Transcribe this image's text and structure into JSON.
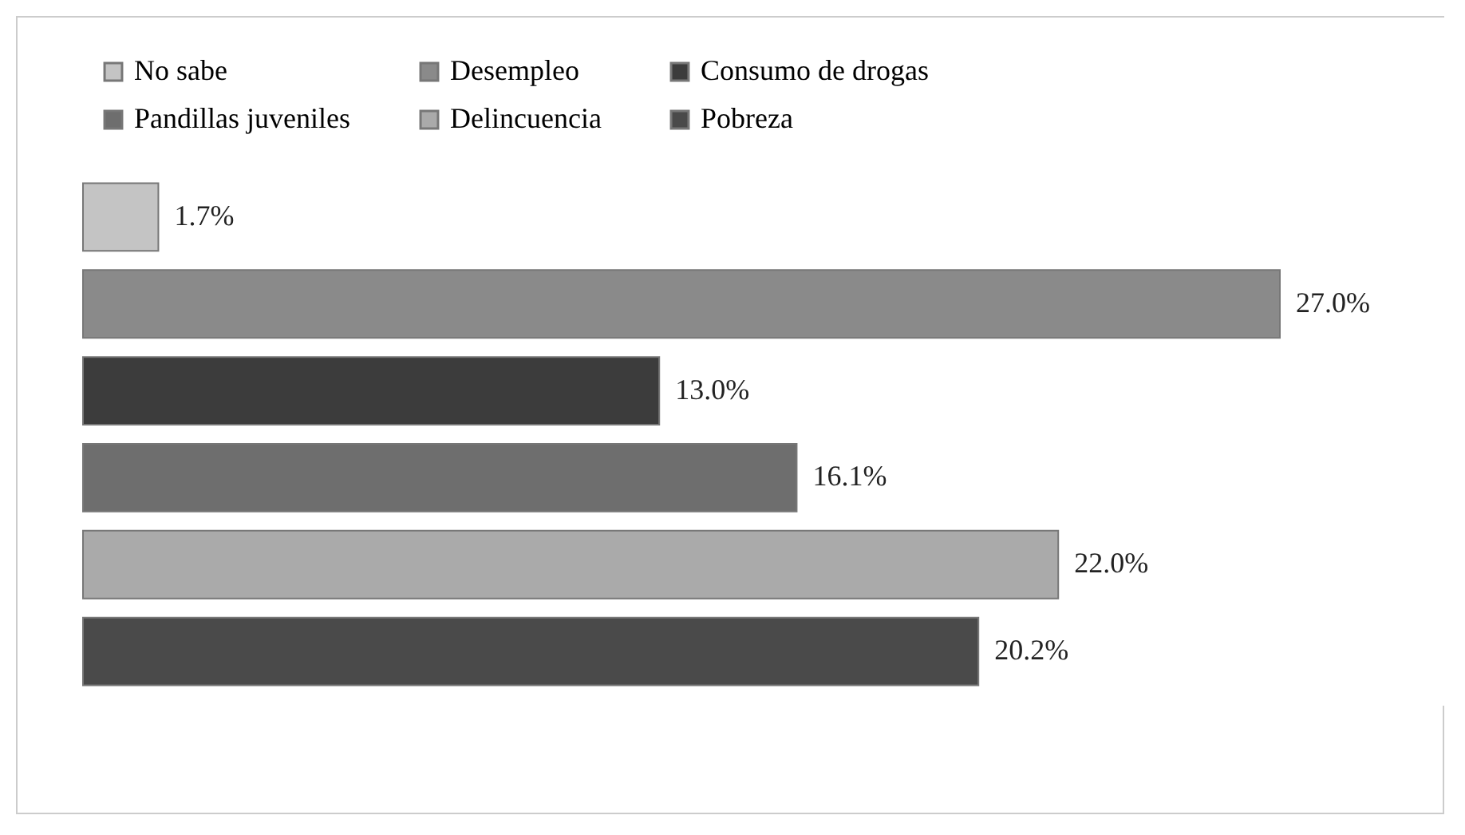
{
  "chart_data": {
    "type": "bar",
    "orientation": "horizontal",
    "stacked": true,
    "categories": [
      null,
      null,
      null,
      null,
      null,
      null
    ],
    "legend": "top",
    "series": [
      {
        "name": "No sabe",
        "color": "#c4c4c4",
        "values": [
          1.7,
          null,
          null,
          null,
          null,
          null
        ],
        "value_labels": [
          "1.7%",
          null,
          null,
          null,
          null,
          null
        ]
      },
      {
        "name": "Desempleo",
        "color": "#8a8a8a",
        "values": [
          null,
          27.0,
          null,
          null,
          null,
          null
        ],
        "value_labels": [
          null,
          "27.0%",
          null,
          null,
          null,
          null
        ]
      },
      {
        "name": "Consumo de drogas",
        "color": "#3c3c3c",
        "values": [
          null,
          null,
          13.0,
          null,
          null,
          null
        ],
        "value_labels": [
          null,
          null,
          "13.0%",
          null,
          null,
          null
        ]
      },
      {
        "name": "Pandillas juveniles",
        "color": "#6e6e6e",
        "values": [
          null,
          null,
          null,
          16.1,
          null,
          null
        ],
        "value_labels": [
          null,
          null,
          null,
          "16.1%",
          null,
          null
        ]
      },
      {
        "name": "Delincuencia",
        "color": "#aaaaaa",
        "values": [
          null,
          null,
          null,
          null,
          22.0,
          null
        ],
        "value_labels": [
          null,
          null,
          null,
          null,
          "22.0%",
          null
        ]
      },
      {
        "name": "Pobreza",
        "color": "#4a4a4a",
        "values": [
          null,
          null,
          null,
          null,
          null,
          20.2
        ],
        "value_labels": [
          null,
          null,
          null,
          null,
          null,
          "20.2%"
        ]
      }
    ]
  }
}
